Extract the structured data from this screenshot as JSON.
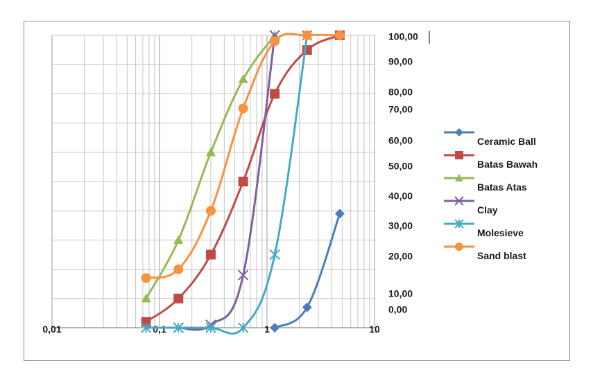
{
  "chart_data": {
    "type": "line",
    "title": "",
    "xlabel": "",
    "ylabel": "",
    "x_scale": "log",
    "xlim": [
      0.01,
      10
    ],
    "ylim": [
      0,
      100
    ],
    "grid": true,
    "legend_position": "right",
    "x_tick_labels": [
      "0,01",
      "0,1",
      "1",
      "10"
    ],
    "x_tick_values": [
      0.01,
      0.1,
      1,
      10
    ],
    "y_tick_labels": [
      "100,00",
      "90,00",
      "80,00",
      "70,00",
      "60,00",
      "50,00",
      "40,00",
      "30,00",
      "20,00",
      "10,00",
      "0,00"
    ],
    "series": [
      {
        "name": "Ceramic Ball",
        "color": "#4a7ebb",
        "marker": "diamond",
        "x": [
          1.18,
          2.36,
          4.75
        ],
        "y": [
          0,
          7,
          39
        ]
      },
      {
        "name": "Batas Bawah",
        "color": "#be4b48",
        "marker": "square",
        "x": [
          0.075,
          0.15,
          0.3,
          0.6,
          1.18,
          2.36,
          4.75
        ],
        "y": [
          2,
          10,
          25,
          50,
          80,
          95,
          100
        ]
      },
      {
        "name": "Batas Atas",
        "color": "#98b954",
        "marker": "triangle",
        "x": [
          0.075,
          0.15,
          0.3,
          0.6,
          1.18
        ],
        "y": [
          10,
          30,
          60,
          85,
          100
        ]
      },
      {
        "name": "Clay",
        "color": "#7d60a0",
        "marker": "x",
        "x": [
          0.15,
          0.3,
          0.6,
          1.18
        ],
        "y": [
          0,
          1,
          18,
          100
        ]
      },
      {
        "name": "Molesieve",
        "color": "#46aac5",
        "marker": "asterisk",
        "x": [
          0.075,
          0.15,
          0.3,
          0.6,
          1.18,
          2.36
        ],
        "y": [
          0,
          0,
          0,
          0,
          25,
          100
        ]
      },
      {
        "name": "Sand blast",
        "color": "#f69240",
        "marker": "circle",
        "x": [
          0.075,
          0.15,
          0.3,
          0.6,
          1.18,
          2.36,
          4.75
        ],
        "y": [
          17,
          20,
          40,
          75,
          98,
          100,
          100
        ]
      }
    ]
  }
}
